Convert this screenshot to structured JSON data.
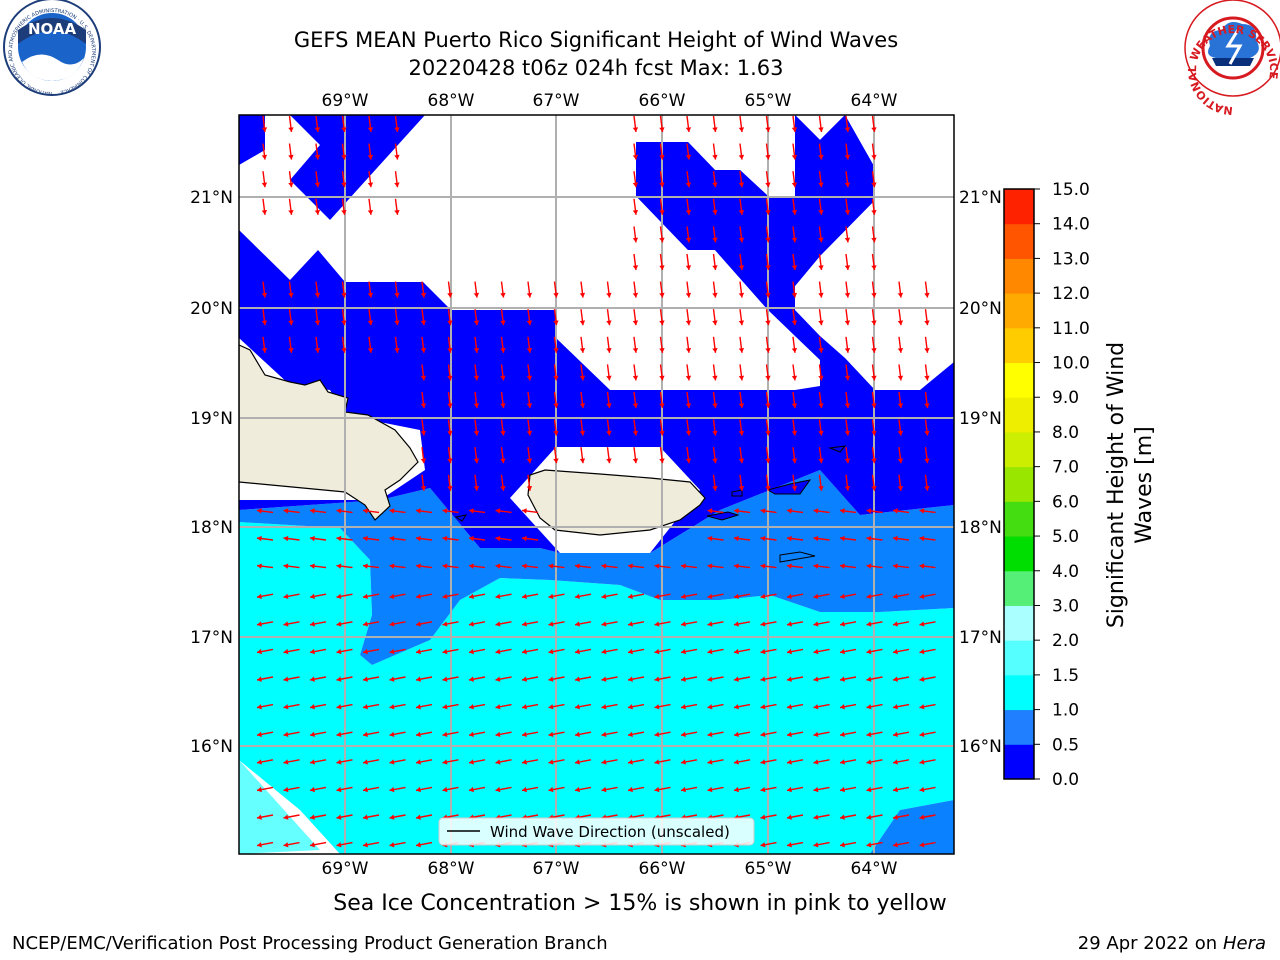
{
  "header": {
    "title_line1": "GEFS MEAN Puerto Rico Significant Height of Wind Waves",
    "title_line2": "20220428 t06z 024h fcst   Max: 1.63"
  },
  "logos": {
    "left": {
      "text": "NOAA",
      "ring_text": "NATIONAL OCEANIC AND ATMOSPHERIC ADMINISTRATION · U.S. DEPARTMENT OF COMMERCE"
    },
    "right": {
      "ring_text": "NATIONAL WEATHER SERVICE"
    }
  },
  "map": {
    "lon_labels": [
      "69°W",
      "68°W",
      "67°W",
      "66°W",
      "65°W",
      "64°W"
    ],
    "lat_labels": [
      "21°N",
      "20°N",
      "19°N",
      "18°N",
      "17°N",
      "16°N"
    ],
    "legend_label": "Wind Wave Direction (unscaled)",
    "colors": {
      "band_0_0.5": "#0000ff",
      "band_0.5_1.0": "#0a82ff",
      "band_1.0_1.5": "#00ffff",
      "band_1.5_2.0": "#66ffff",
      "land": "#efecdc",
      "arrow": "#ff0000"
    }
  },
  "colorbar": {
    "label_line1": "Significant Height of Wind",
    "label_line2": "Waves [m]",
    "ticks": [
      "0.0",
      "0.5",
      "1.0",
      "1.5",
      "2.0",
      "3.0",
      "4.0",
      "5.0",
      "6.0",
      "7.0",
      "8.0",
      "9.0",
      "10.0",
      "11.0",
      "12.0",
      "13.0",
      "14.0",
      "15.0"
    ],
    "colors": [
      "#0000ff",
      "#1f7fff",
      "#00ffff",
      "#55ffff",
      "#aaffff",
      "#55ee77",
      "#00dd00",
      "#44dd11",
      "#99e600",
      "#ccee00",
      "#eeee00",
      "#ffff00",
      "#ffcc00",
      "#ffaa00",
      "#ff8800",
      "#ff5500",
      "#ff2200"
    ]
  },
  "footer": {
    "note": "Sea Ice Concentration > 15% is shown in pink to yellow",
    "left": "NCEP/EMC/Verification Post Processing Product Generation Branch",
    "right_date": "29 Apr 2022 on ",
    "right_machine": "Hera"
  }
}
